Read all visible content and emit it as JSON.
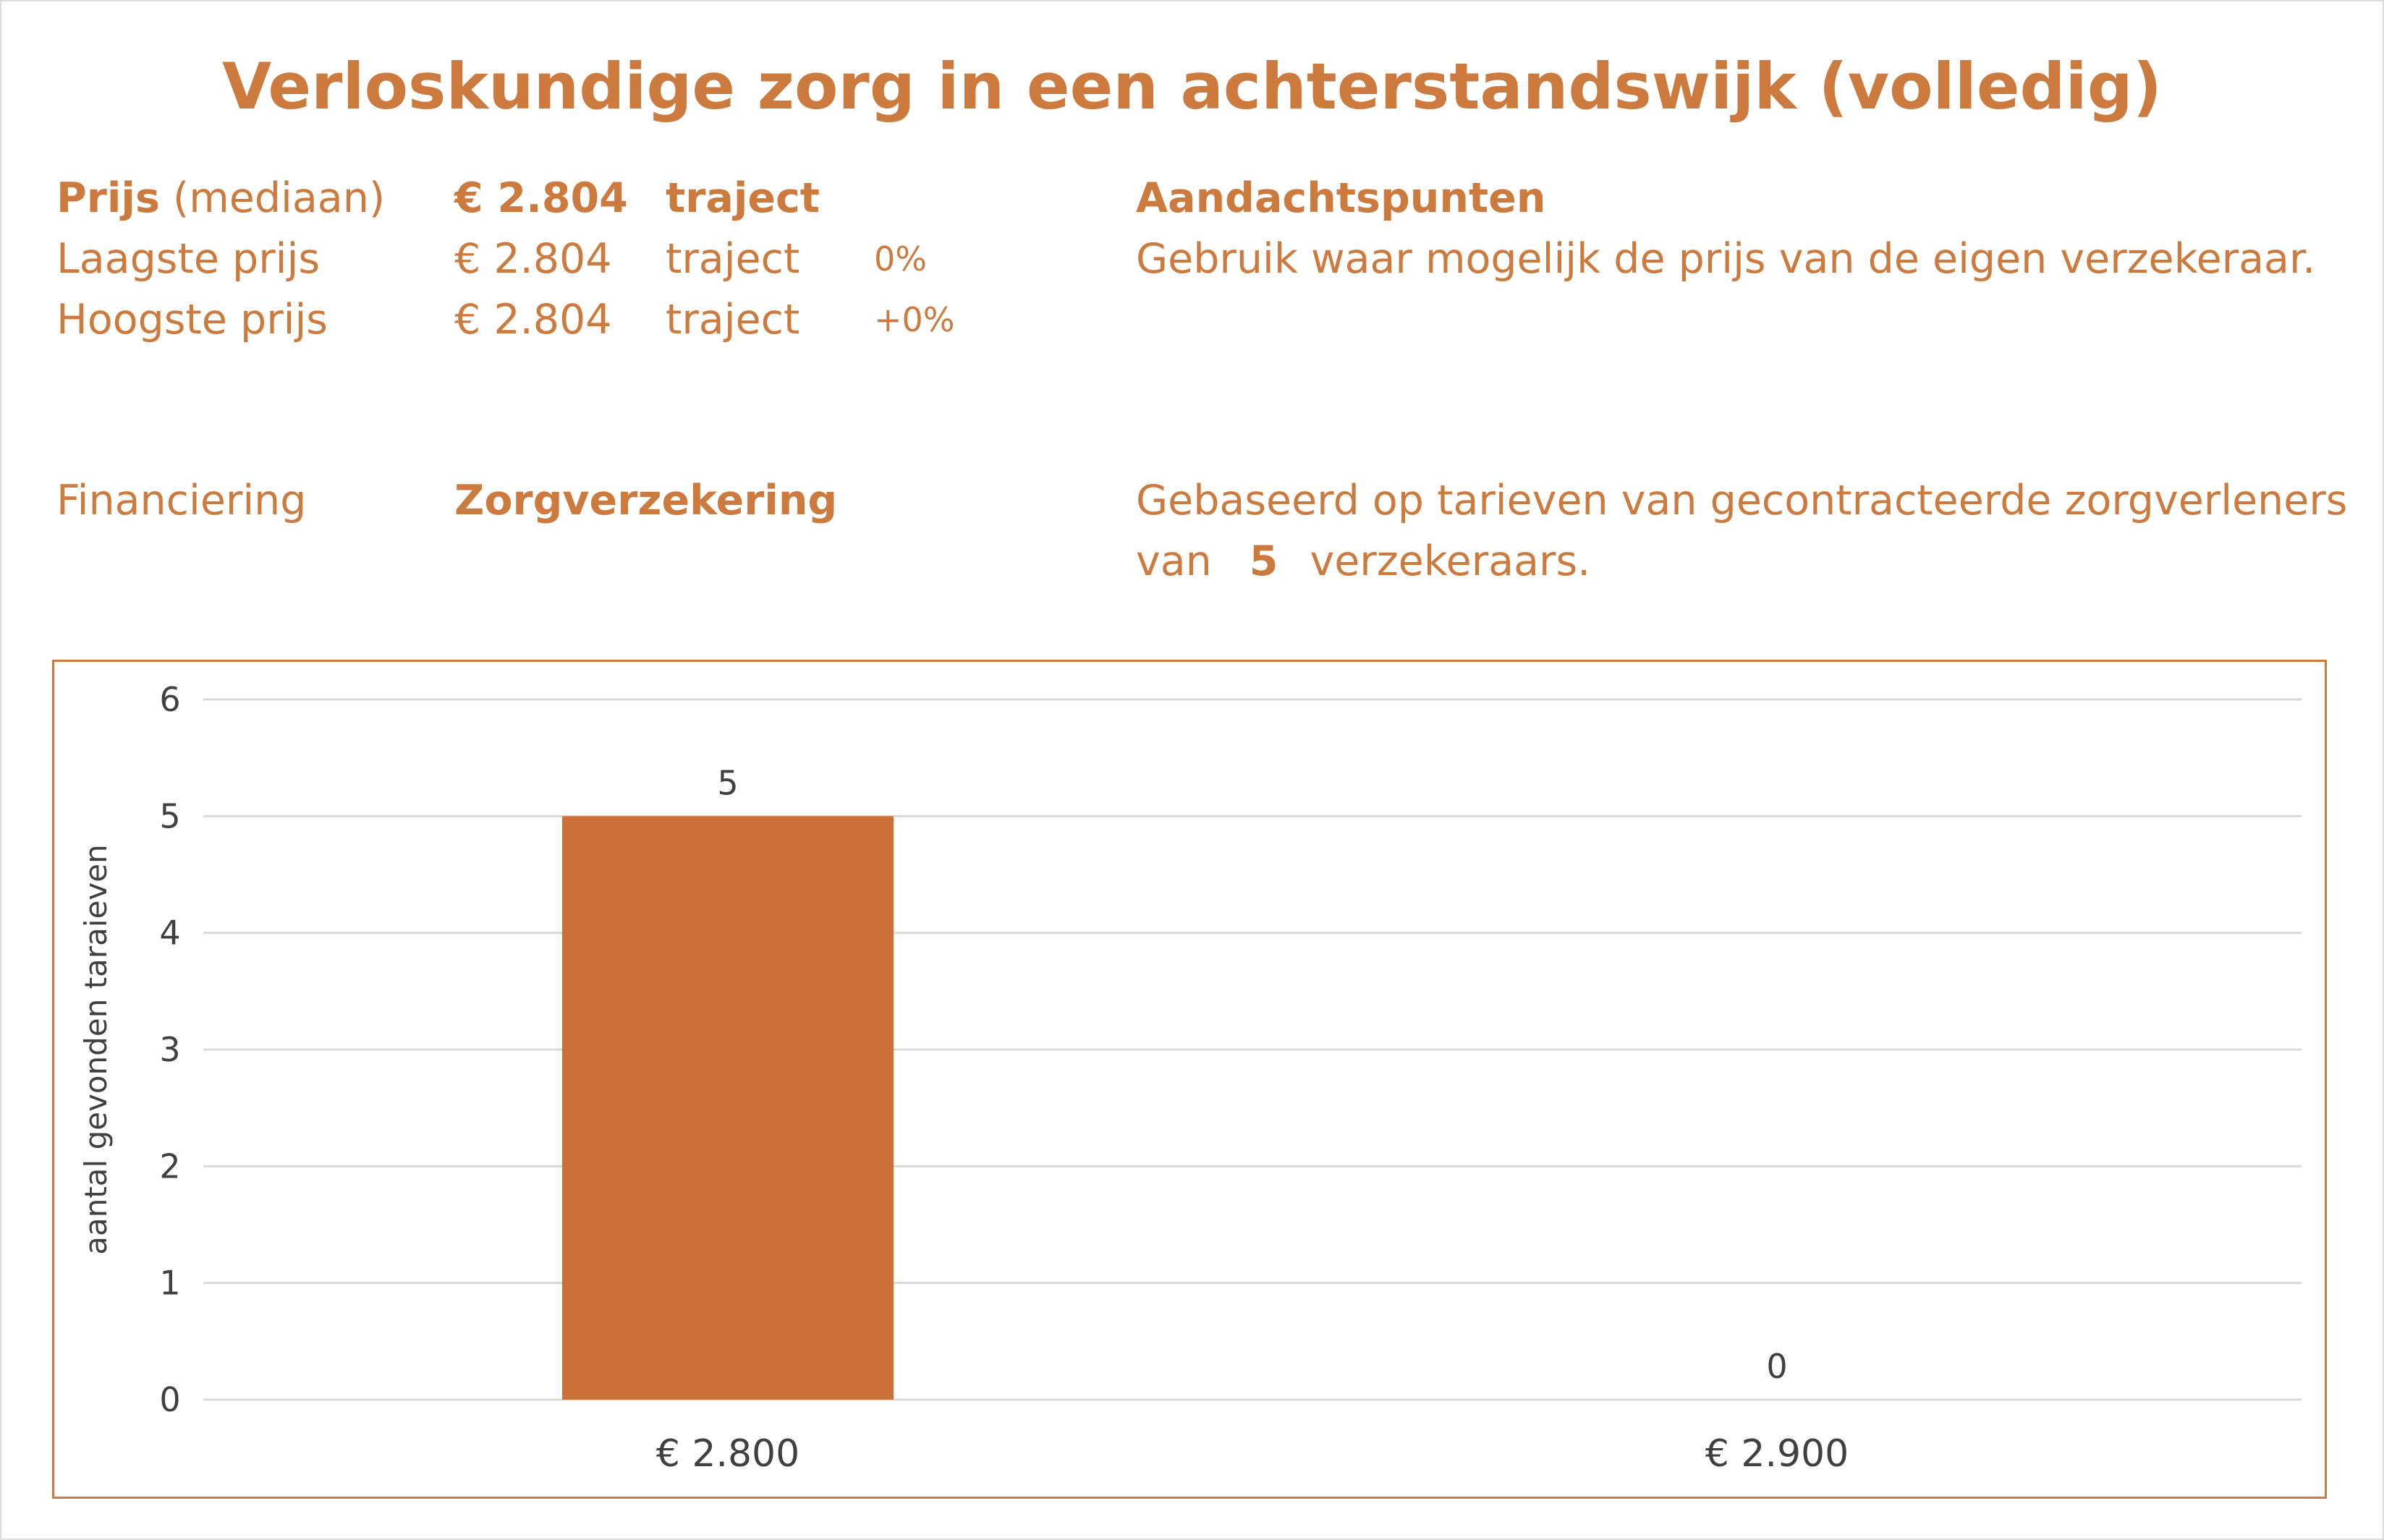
{
  "title": "Verloskundige zorg in een achterstandswijk (volledig)",
  "prices": {
    "median": {
      "label_bold": "Prijs",
      "label_rest": "(mediaan)",
      "value": "€ 2.804",
      "unit": "traject"
    },
    "lowest": {
      "label": "Laagste prijs",
      "value": "€ 2.804",
      "unit": "traject",
      "pct": "0%"
    },
    "highest": {
      "label": "Hoogste prijs",
      "value": "€ 2.804",
      "unit": "traject",
      "pct": "+0%"
    }
  },
  "attention": {
    "heading": "Aandachtspunten",
    "text": "Gebruik waar mogelijk de prijs van de eigen verzekeraar."
  },
  "financing": {
    "label": "Financiering",
    "value": "Zorgverzekering"
  },
  "basis": {
    "line1": "Gebaseerd op tarieven van gecontracteerde zorgverleners",
    "prefix": "van",
    "count": "5",
    "suffix": "verzekeraars."
  },
  "colors": {
    "accent": "#cc7a3e",
    "bar": "#cc7038",
    "grid": "#d9d9d9",
    "axis_text": "#404040"
  },
  "chart_data": {
    "type": "bar",
    "categories": [
      "€ 2.800",
      "€ 2.900"
    ],
    "values": [
      5,
      0
    ],
    "data_labels": [
      "5",
      "0"
    ],
    "title": "",
    "xlabel": "",
    "ylabel": "aantal gevonden taraieven",
    "ylim": [
      0,
      6
    ],
    "yticks": [
      "0",
      "1",
      "2",
      "3",
      "4",
      "5",
      "6"
    ],
    "grid": true,
    "legend": "none"
  }
}
